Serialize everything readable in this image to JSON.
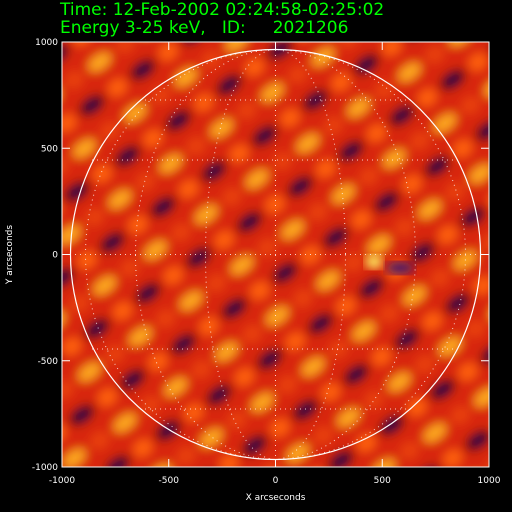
{
  "chart_data": {
    "type": "image",
    "title": "Time: 12-Feb-2002 02:24:58-02:25:02",
    "subtitle": "Energy 3-25 keV,   ID:     2021206",
    "xlabel": "X arcseconds",
    "ylabel": "Y arcseconds",
    "xlim": [
      -1000,
      1000
    ],
    "ylim": [
      -1000,
      1000
    ],
    "xticks": [
      -1000,
      -500,
      0,
      500,
      1000
    ],
    "yticks": [
      -1000,
      -500,
      0,
      500,
      1000
    ]
  }
}
